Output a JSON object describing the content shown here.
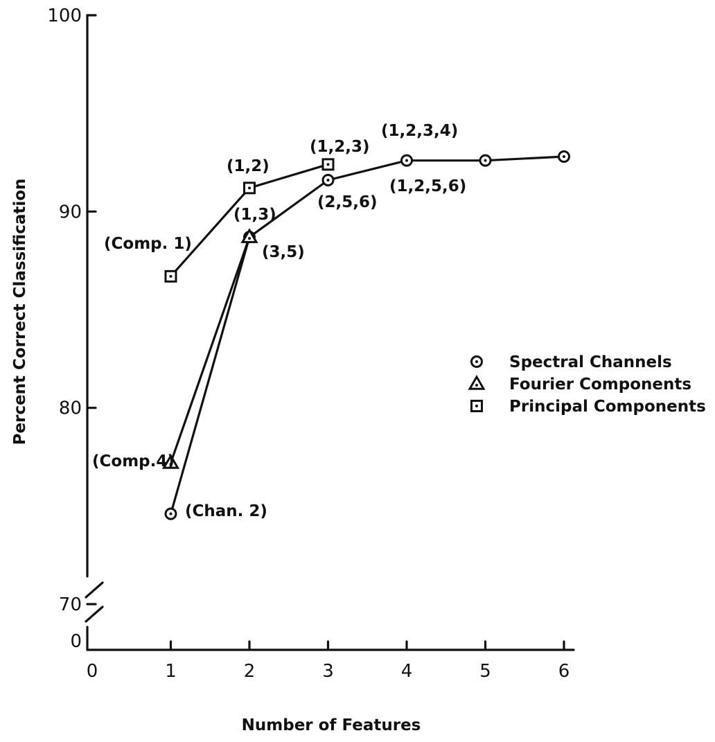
{
  "chart_data": {
    "type": "line",
    "xlabel": "Number of Features",
    "ylabel": "Percent Correct Classification",
    "x_ticks": [
      "0",
      "1",
      "2",
      "3",
      "4",
      "5",
      "6"
    ],
    "y_ticks": [
      "0",
      "70",
      "80",
      "90",
      "100"
    ],
    "xlim": [
      0,
      6
    ],
    "ylim": [
      70,
      100
    ],
    "y_axis_break": true,
    "grid": false,
    "legend_position": "right",
    "series": [
      {
        "name": "Spectral Channels",
        "marker": "circle-dot",
        "x": [
          1,
          2,
          3,
          4,
          5,
          6
        ],
        "y": [
          74.6,
          88.7,
          91.6,
          92.6,
          92.6,
          92.8
        ]
      },
      {
        "name": "Fourier Components",
        "marker": "triangle-dot",
        "x": [
          1,
          2
        ],
        "y": [
          77.2,
          88.7
        ]
      },
      {
        "name": "Principal Components",
        "marker": "square-dot",
        "x": [
          1,
          2,
          3
        ],
        "y": [
          86.7,
          91.2,
          92.4
        ]
      }
    ],
    "annotations": [
      {
        "text": "(Chan. 2)",
        "series": "Spectral Channels",
        "x": 1
      },
      {
        "text": "(3,5)",
        "series": "Spectral Channels",
        "x": 2
      },
      {
        "text": "(2,5,6)",
        "series": "Spectral Channels",
        "x": 3
      },
      {
        "text": "(1,2,5,6)",
        "series": "Spectral Channels",
        "x": 4
      },
      {
        "text": "(1,2,3,4)",
        "series": "Spectral Channels",
        "x": 4
      },
      {
        "text": "(Comp.4)",
        "series": "Fourier Components",
        "x": 1
      },
      {
        "text": "(1,3)",
        "series": "Fourier Components",
        "x": 2
      },
      {
        "text": "(Comp. 1)",
        "series": "Principal Components",
        "x": 1
      },
      {
        "text": "(1,2)",
        "series": "Principal Components",
        "x": 2
      },
      {
        "text": "(1,2,3)",
        "series": "Principal Components",
        "x": 3
      }
    ]
  }
}
